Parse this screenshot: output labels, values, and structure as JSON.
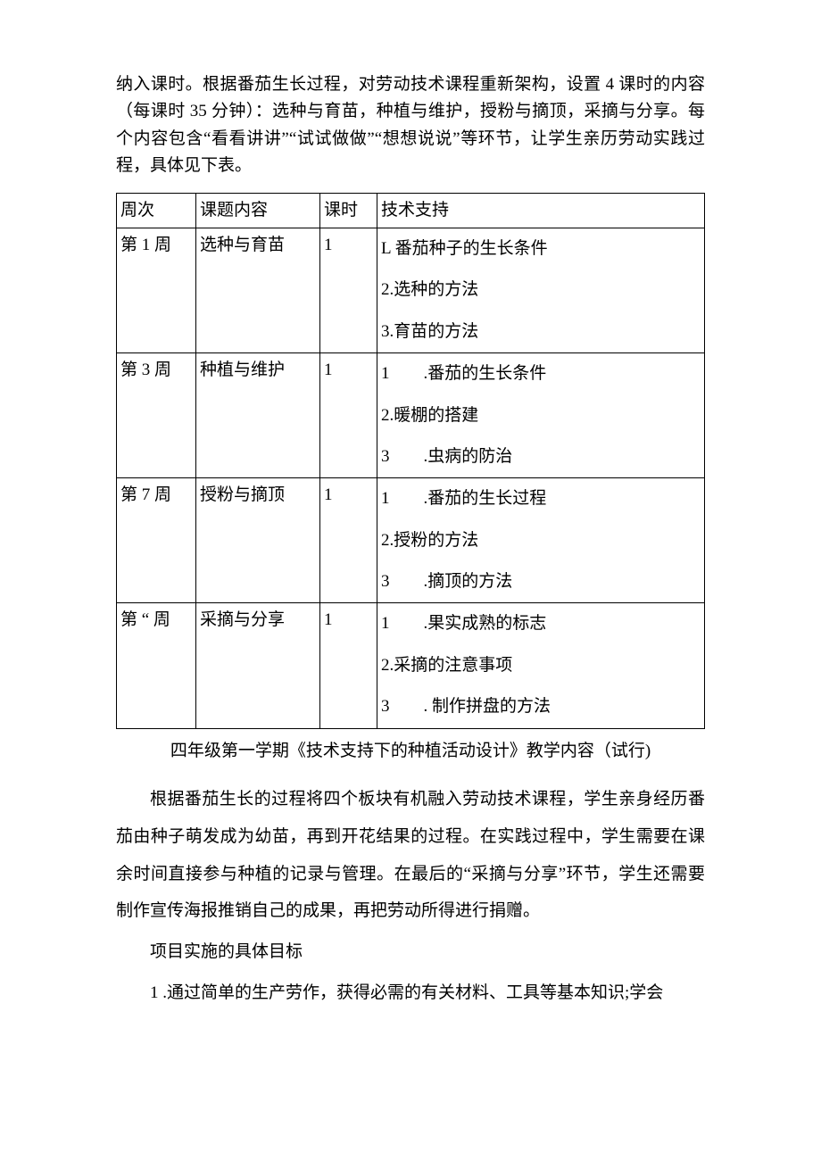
{
  "intro": "纳入课时。根据番茄生长过程，对劳动技术课程重新架构，设置 4 课时的内容（每课时 35 分钟）：选种与育苗，种植与维护，授粉与摘顶，采摘与分享。每个内容包含“看看讲讲”“试试做做”“想想说说”等环节，让学生亲历劳动实践过程，具体见下表。",
  "table": {
    "headers": [
      "周次",
      "课题内容",
      "课时",
      "技术支持"
    ],
    "rows": [
      {
        "week": "第 1 周",
        "topic": "选种与育苗",
        "hours": "1",
        "tech": [
          "L 番茄种子的生长条件",
          "2.选种的方法",
          "3.育苗的方法"
        ]
      },
      {
        "week": "第 3 周",
        "topic": "种植与维护",
        "hours": "1",
        "tech": [
          "1　　.番茄的生长条件",
          "2.暖棚的搭建",
          "3　　.虫病的防治"
        ]
      },
      {
        "week": "第 7 周",
        "topic": "授粉与摘顶",
        "hours": "1",
        "tech": [
          "1　　.番茄的生长过程",
          "2.授粉的方法",
          "3　　.摘顶的方法"
        ]
      },
      {
        "week": "第 “ 周",
        "topic": "采摘与分享",
        "hours": "1",
        "tech": [
          "1　　.果实成熟的标志",
          "2.采摘的注意事项",
          "3　　. 制作拼盘的方法"
        ]
      }
    ]
  },
  "caption": "四年级第一学期《技术支持下的种植活动设计》教学内容（试行)",
  "para1": "根据番茄生长的过程将四个板块有机融入劳动技术课程，学生亲身经历番茄由种子萌发成为幼苗，再到开花结果的过程。在实践过程中，学生需要在课余时间直接参与种植的记录与管理。在最后的“采摘与分享”环节，学生还需要制作宣传海报推销自己的成果，再把劳动所得进行捐赠。",
  "section": "项目实施的具体目标",
  "goal1": "1 .通过简单的生产劳作，获得必需的有关材料、工具等基本知识;学会"
}
